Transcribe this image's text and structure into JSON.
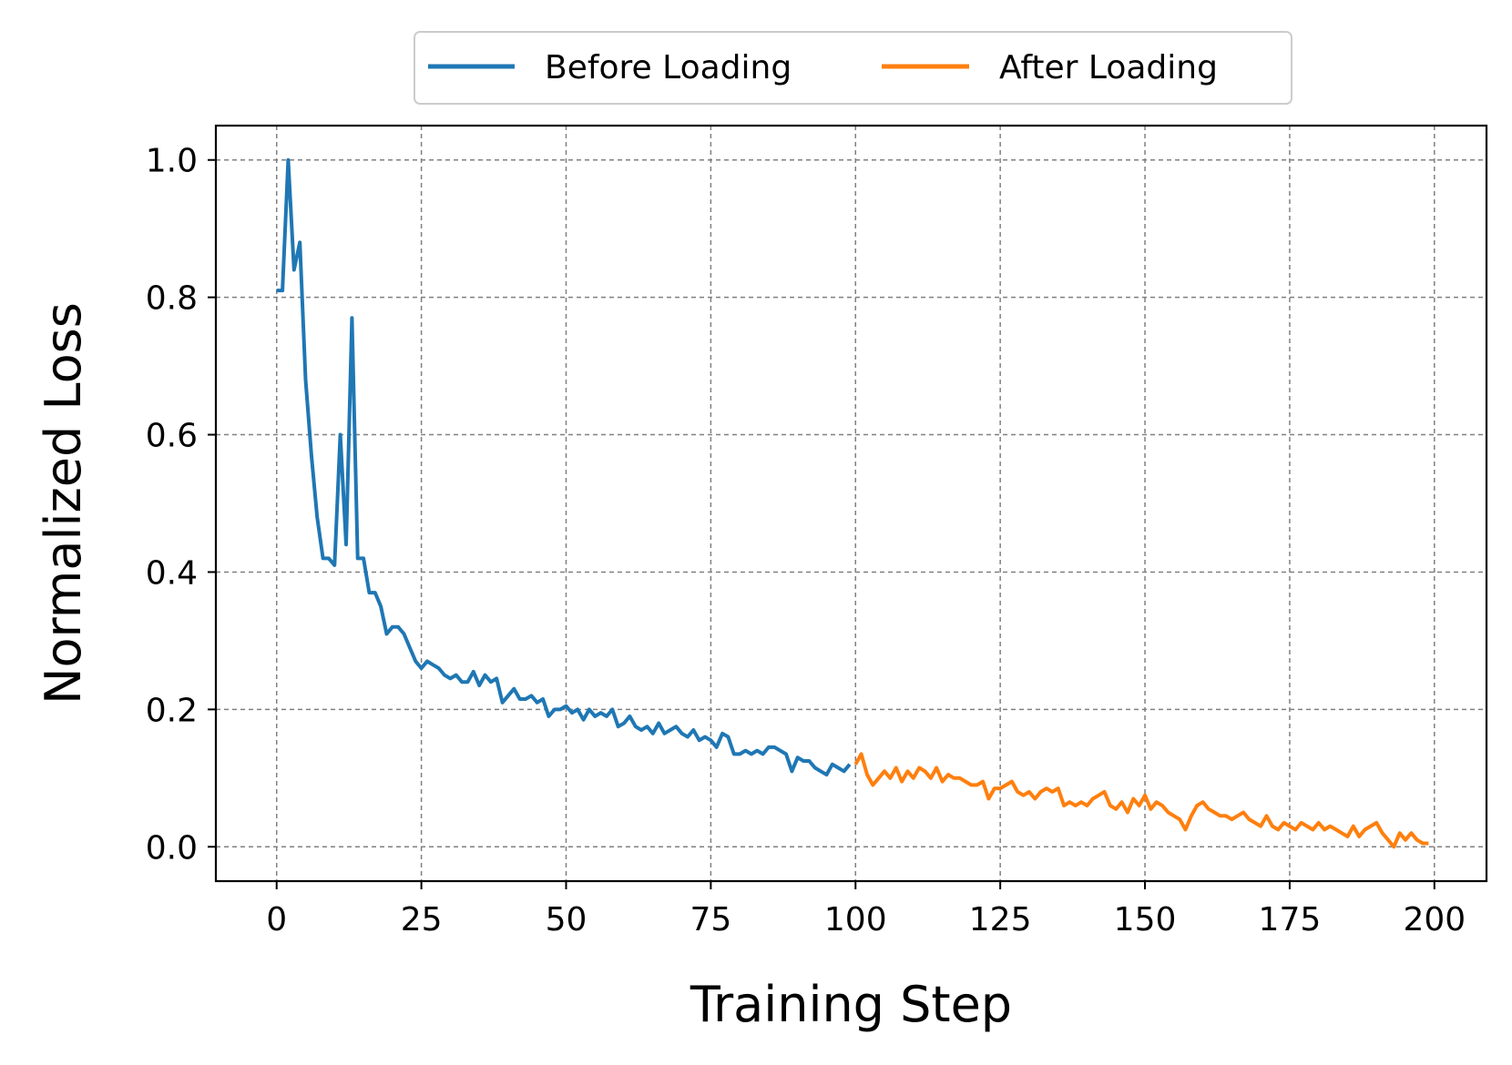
{
  "chart_data": {
    "type": "line",
    "title": "",
    "xlabel": "Training Step",
    "ylabel": "Normalized Loss",
    "xlim": [
      -10.5,
      209
    ],
    "ylim": [
      -0.05,
      1.05
    ],
    "xticks": [
      0,
      25,
      50,
      75,
      100,
      125,
      150,
      175,
      200
    ],
    "yticks": [
      0.0,
      0.2,
      0.4,
      0.6,
      0.8,
      1.0
    ],
    "xtick_labels": [
      "0",
      "25",
      "50",
      "75",
      "100",
      "125",
      "150",
      "175",
      "200"
    ],
    "ytick_labels": [
      "0.0",
      "0.2",
      "0.4",
      "0.6",
      "0.8",
      "1.0"
    ],
    "grid": true,
    "legend": {
      "position": "top-center",
      "columns": 2
    },
    "series": [
      {
        "name": "Before Loading",
        "color": "#1f77b4",
        "x": [
          0,
          1,
          2,
          3,
          4,
          5,
          6,
          7,
          8,
          9,
          10,
          11,
          12,
          13,
          14,
          15,
          16,
          17,
          18,
          19,
          20,
          21,
          22,
          23,
          24,
          25,
          26,
          27,
          28,
          29,
          30,
          31,
          32,
          33,
          34,
          35,
          36,
          37,
          38,
          39,
          40,
          41,
          42,
          43,
          44,
          45,
          46,
          47,
          48,
          49,
          50,
          51,
          52,
          53,
          54,
          55,
          56,
          57,
          58,
          59,
          60,
          61,
          62,
          63,
          64,
          65,
          66,
          67,
          68,
          69,
          70,
          71,
          72,
          73,
          74,
          75,
          76,
          77,
          78,
          79,
          80,
          81,
          82,
          83,
          84,
          85,
          86,
          87,
          88,
          89,
          90,
          91,
          92,
          93,
          94,
          95,
          96,
          97,
          98,
          99
        ],
        "y": [
          0.81,
          0.81,
          1.0,
          0.84,
          0.88,
          0.68,
          0.57,
          0.48,
          0.42,
          0.42,
          0.41,
          0.6,
          0.44,
          0.77,
          0.42,
          0.42,
          0.37,
          0.37,
          0.35,
          0.31,
          0.32,
          0.32,
          0.31,
          0.29,
          0.27,
          0.26,
          0.27,
          0.265,
          0.26,
          0.25,
          0.245,
          0.25,
          0.24,
          0.24,
          0.255,
          0.235,
          0.25,
          0.24,
          0.245,
          0.21,
          0.22,
          0.23,
          0.215,
          0.215,
          0.22,
          0.21,
          0.215,
          0.19,
          0.2,
          0.2,
          0.205,
          0.195,
          0.2,
          0.185,
          0.2,
          0.19,
          0.195,
          0.19,
          0.2,
          0.175,
          0.18,
          0.19,
          0.175,
          0.17,
          0.175,
          0.165,
          0.18,
          0.165,
          0.17,
          0.175,
          0.165,
          0.16,
          0.17,
          0.155,
          0.16,
          0.155,
          0.145,
          0.165,
          0.16,
          0.135,
          0.135,
          0.14,
          0.135,
          0.14,
          0.135,
          0.145,
          0.145,
          0.14,
          0.135,
          0.11,
          0.13,
          0.125,
          0.125,
          0.115,
          0.11,
          0.105,
          0.12,
          0.115,
          0.11,
          0.12
        ]
      },
      {
        "name": "After Loading",
        "color": "#ff7f0e",
        "x": [
          100,
          101,
          102,
          103,
          104,
          105,
          106,
          107,
          108,
          109,
          110,
          111,
          112,
          113,
          114,
          115,
          116,
          117,
          118,
          119,
          120,
          121,
          122,
          123,
          124,
          125,
          126,
          127,
          128,
          129,
          130,
          131,
          132,
          133,
          134,
          135,
          136,
          137,
          138,
          139,
          140,
          141,
          142,
          143,
          144,
          145,
          146,
          147,
          148,
          149,
          150,
          151,
          152,
          153,
          154,
          155,
          156,
          157,
          158,
          159,
          160,
          161,
          162,
          163,
          164,
          165,
          166,
          167,
          168,
          169,
          170,
          171,
          172,
          173,
          174,
          175,
          176,
          177,
          178,
          179,
          180,
          181,
          182,
          183,
          184,
          185,
          186,
          187,
          188,
          189,
          190,
          191,
          192,
          193,
          194,
          195,
          196,
          197,
          198,
          199
        ],
        "y": [
          0.12,
          0.135,
          0.105,
          0.09,
          0.1,
          0.11,
          0.1,
          0.115,
          0.095,
          0.11,
          0.1,
          0.115,
          0.11,
          0.1,
          0.115,
          0.095,
          0.105,
          0.1,
          0.1,
          0.095,
          0.09,
          0.09,
          0.095,
          0.07,
          0.085,
          0.085,
          0.09,
          0.095,
          0.08,
          0.075,
          0.08,
          0.07,
          0.08,
          0.085,
          0.08,
          0.085,
          0.06,
          0.065,
          0.06,
          0.065,
          0.06,
          0.07,
          0.075,
          0.08,
          0.06,
          0.055,
          0.065,
          0.05,
          0.07,
          0.06,
          0.075,
          0.055,
          0.065,
          0.06,
          0.05,
          0.045,
          0.04,
          0.025,
          0.045,
          0.06,
          0.065,
          0.055,
          0.05,
          0.045,
          0.045,
          0.04,
          0.045,
          0.05,
          0.04,
          0.035,
          0.03,
          0.045,
          0.03,
          0.025,
          0.035,
          0.03,
          0.025,
          0.035,
          0.03,
          0.025,
          0.035,
          0.025,
          0.03,
          0.025,
          0.02,
          0.015,
          0.03,
          0.015,
          0.025,
          0.03,
          0.035,
          0.02,
          0.01,
          0.0,
          0.02,
          0.01,
          0.02,
          0.01,
          0.005,
          0.005
        ]
      }
    ]
  }
}
